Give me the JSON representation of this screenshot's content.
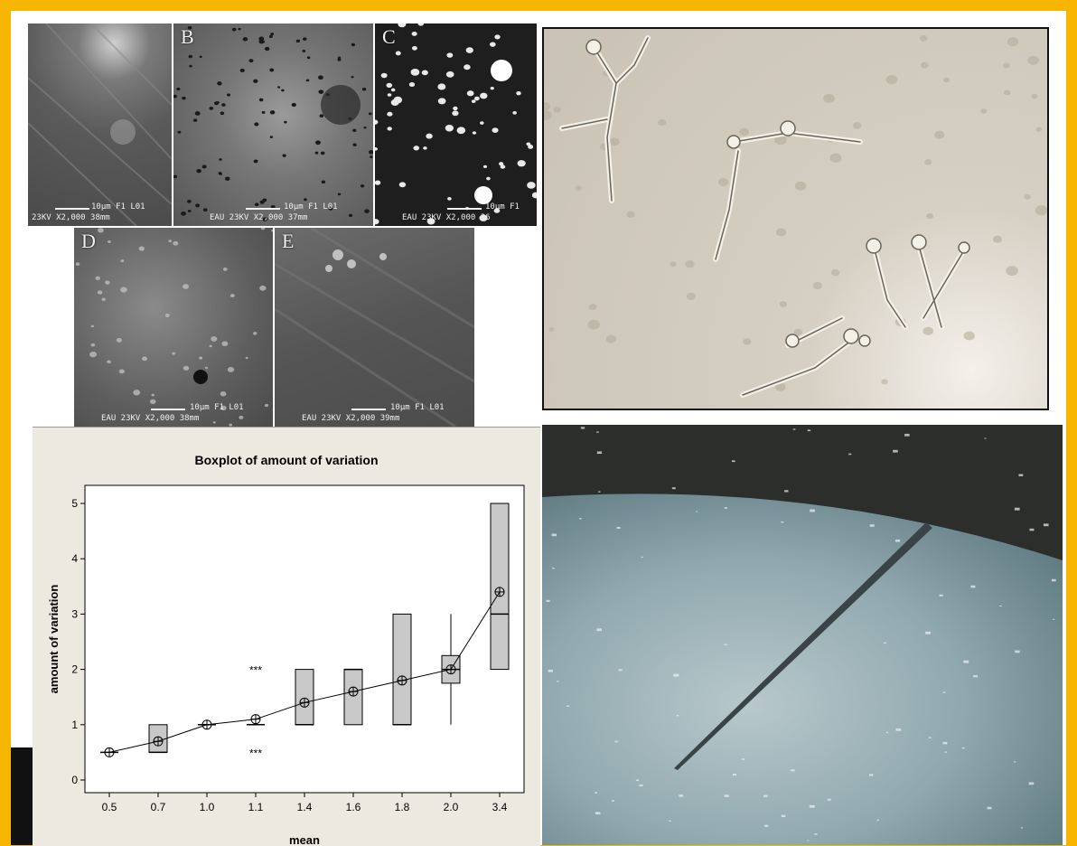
{
  "sem_panels": [
    {
      "letter": "",
      "scale": "10µm F1 L01",
      "caption": "23KV  X2,000 38mm"
    },
    {
      "letter": "B",
      "scale": "10µm F1 L01",
      "caption": "EAU  23KV  X2,000 37mm"
    },
    {
      "letter": "C",
      "scale": "10µm F1",
      "caption": "EAU  23KV  X2,000 36"
    },
    {
      "letter": "D",
      "scale": "10µm F1 L01",
      "caption": "EAU  23KV  X2,000 38mm"
    },
    {
      "letter": "E",
      "scale": "10µm F1 L01",
      "caption": "EAU  23KV  X2,000 39mm"
    }
  ],
  "chart_data": {
    "type": "box",
    "title": "Boxplot of amount of variation",
    "xlabel": "mean",
    "ylabel": "amount of variation",
    "categories": [
      "0.5",
      "0.7",
      "1.0",
      "1.1",
      "1.4",
      "1.6",
      "1.8",
      "2.0",
      "3.4"
    ],
    "ylim": [
      0,
      5
    ],
    "yticks": [
      0,
      1,
      2,
      3,
      4,
      5
    ],
    "boxes": [
      {
        "q1": 0.5,
        "median": 0.5,
        "q3": 0.5,
        "whisker_low": 0.5,
        "whisker_high": 0.5,
        "mean": 0.5,
        "outliers": []
      },
      {
        "q1": 0.5,
        "median": 0.5,
        "q3": 1.0,
        "whisker_low": 0.5,
        "whisker_high": 1.0,
        "mean": 0.7,
        "outliers": []
      },
      {
        "q1": 1.0,
        "median": 1.0,
        "q3": 1.0,
        "whisker_low": 1.0,
        "whisker_high": 1.0,
        "mean": 1.0,
        "outliers": []
      },
      {
        "q1": 1.0,
        "median": 1.0,
        "q3": 1.0,
        "whisker_low": 1.0,
        "whisker_high": 1.0,
        "mean": 1.1,
        "outliers": [
          2.0,
          0.5
        ]
      },
      {
        "q1": 1.0,
        "median": 1.0,
        "q3": 2.0,
        "whisker_low": 1.0,
        "whisker_high": 2.0,
        "mean": 1.4,
        "outliers": []
      },
      {
        "q1": 1.0,
        "median": 2.0,
        "q3": 2.0,
        "whisker_low": 1.0,
        "whisker_high": 2.0,
        "mean": 1.6,
        "outliers": []
      },
      {
        "q1": 1.0,
        "median": 1.0,
        "q3": 3.0,
        "whisker_low": 1.0,
        "whisker_high": 3.0,
        "mean": 1.8,
        "outliers": []
      },
      {
        "q1": 1.75,
        "median": 2.0,
        "q3": 2.25,
        "whisker_low": 1.0,
        "whisker_high": 3.0,
        "mean": 2.0,
        "outliers": []
      },
      {
        "q1": 2.0,
        "median": 3.0,
        "q3": 5.0,
        "whisker_low": 2.0,
        "whisker_high": 5.0,
        "mean": 3.4,
        "outliers": []
      }
    ],
    "outlier_symbol": "***",
    "mean_symbol": "circle-cross",
    "connect_means": true
  },
  "colors": {
    "frame": "#f7b500",
    "box_fill": "#c8c8c8",
    "chart_bg": "#ece9e0"
  }
}
